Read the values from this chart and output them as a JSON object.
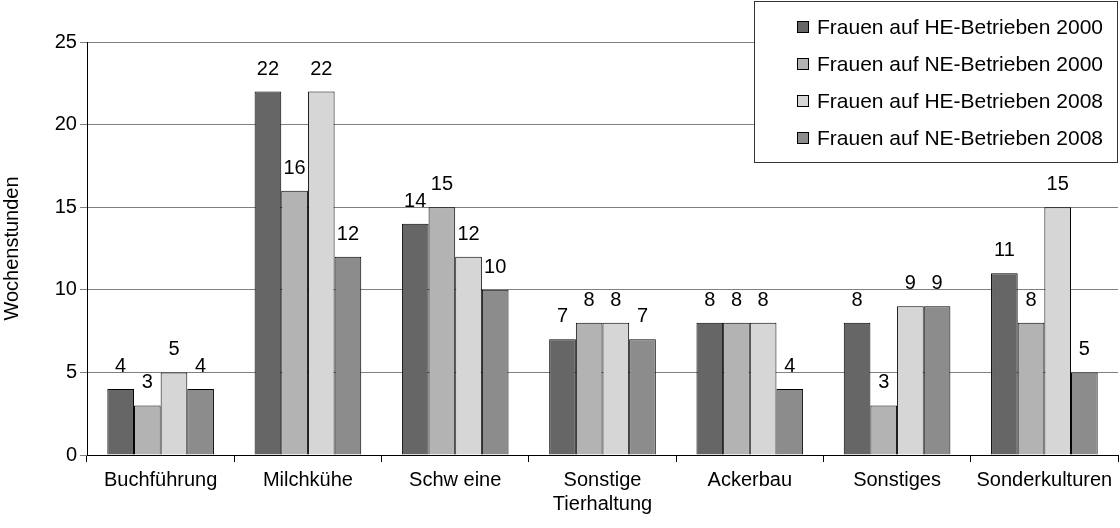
{
  "chart_data": {
    "type": "bar",
    "ylabel": "Wochenstunden",
    "categories": [
      "Buchführung",
      "Milchkühe",
      "Schw eine",
      "Sonstige Tierhaltung",
      "Ackerbau",
      "Sonstiges",
      "Sonderkulturen"
    ],
    "series": [
      {
        "name": "Frauen auf HE-Betrieben 2000",
        "color": "#666666",
        "values": [
          4,
          22,
          14,
          7,
          8,
          8,
          11
        ]
      },
      {
        "name": "Frauen auf NE-Betrieben 2000",
        "color": "#b3b3b3",
        "values": [
          3,
          16,
          15,
          8,
          8,
          3,
          8
        ]
      },
      {
        "name": "Frauen auf HE-Betrieben 2008",
        "color": "#d6d6d6",
        "values": [
          5,
          22,
          12,
          8,
          8,
          9,
          15
        ]
      },
      {
        "name": "Frauen auf NE-Betrieben 2008",
        "color": "#8c8c8c",
        "values": [
          4,
          12,
          10,
          7,
          4,
          9,
          5
        ]
      }
    ],
    "ylim": [
      0,
      25
    ],
    "yticks": [
      0,
      5,
      10,
      15,
      20,
      25
    ],
    "grid": "y",
    "legend": "top right",
    "data_labels": true
  }
}
